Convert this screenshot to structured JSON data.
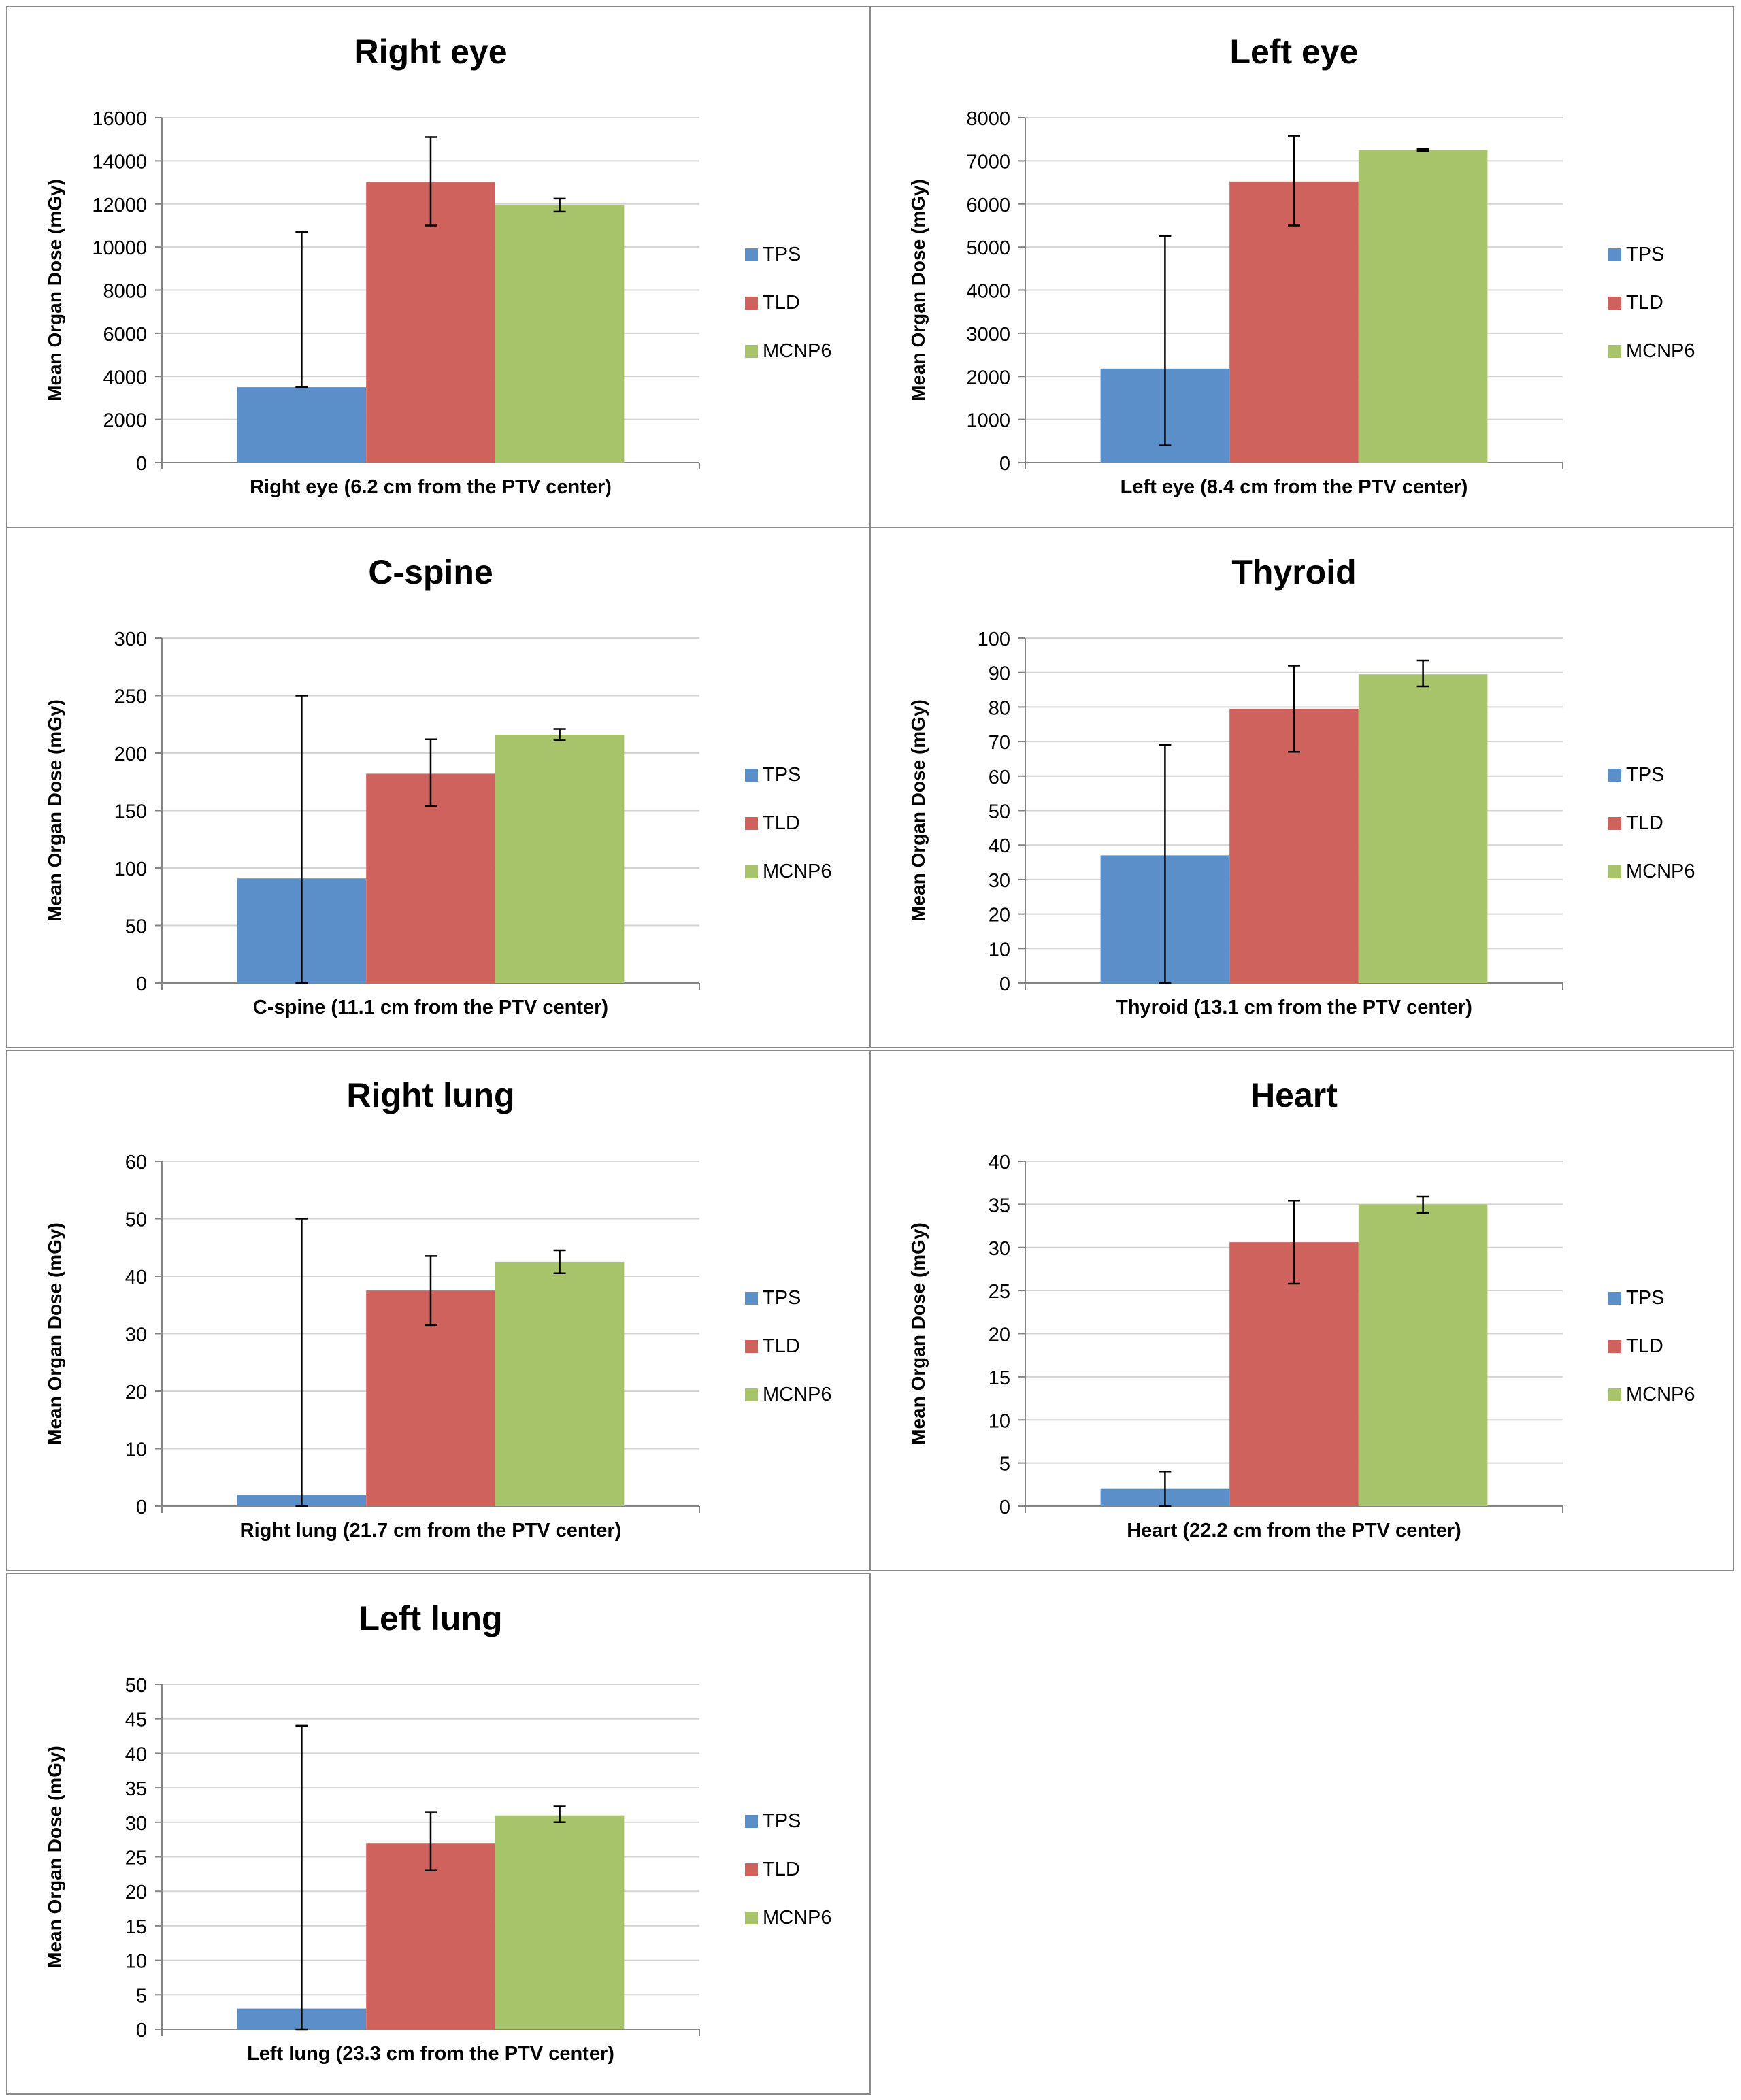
{
  "colors": {
    "TPS": "#5b8fc9",
    "TLD": "#d0625d",
    "MCNP6": "#a8c46b",
    "grid": "#d4d4d4",
    "axis": "#858585",
    "border": "#8a8a8a",
    "text": "#000000"
  },
  "legend": [
    "TPS",
    "TLD",
    "MCNP6"
  ],
  "chart_data": [
    {
      "type": "bar",
      "title": "Right eye",
      "xlabel": "Right eye (6.2 cm from the PTV center)",
      "ylabel": "Mean Organ Dose (mGy)",
      "ylim": [
        0,
        16000
      ],
      "yticks": [
        "0",
        "2000",
        "4000",
        "6000",
        "8000",
        "10000",
        "12000",
        "14000",
        "16000"
      ],
      "series": [
        {
          "name": "TPS",
          "value": 3500,
          "err_low": 3500,
          "err_high": 10700
        },
        {
          "name": "TLD",
          "value": 13000,
          "err_low": 11000,
          "err_high": 15100
        },
        {
          "name": "MCNP6",
          "value": 11950,
          "err_low": 11650,
          "err_high": 12250
        }
      ]
    },
    {
      "type": "bar",
      "title": "Left eye",
      "xlabel": "Left eye (8.4 cm from the PTV center)",
      "ylabel": "Mean Organ Dose (mGy)",
      "ylim": [
        0,
        8000
      ],
      "yticks": [
        "0",
        "1000",
        "2000",
        "3000",
        "4000",
        "5000",
        "6000",
        "7000",
        "8000"
      ],
      "series": [
        {
          "name": "TPS",
          "value": 2180,
          "err_low": 400,
          "err_high": 5250
        },
        {
          "name": "TLD",
          "value": 6520,
          "err_low": 5500,
          "err_high": 7580
        },
        {
          "name": "MCNP6",
          "value": 7250,
          "err_low": 7230,
          "err_high": 7270
        }
      ]
    },
    {
      "type": "bar",
      "title": "C-spine",
      "xlabel": "C-spine (11.1 cm from the PTV center)",
      "ylabel": "Mean Organ Dose (mGy)",
      "ylim": [
        0,
        300
      ],
      "yticks": [
        "0",
        "50",
        "100",
        "150",
        "200",
        "250",
        "300"
      ],
      "series": [
        {
          "name": "TPS",
          "value": 91,
          "err_low": 0,
          "err_high": 250
        },
        {
          "name": "TLD",
          "value": 182,
          "err_low": 154,
          "err_high": 212
        },
        {
          "name": "MCNP6",
          "value": 216,
          "err_low": 211,
          "err_high": 221
        }
      ]
    },
    {
      "type": "bar",
      "title": "Thyroid",
      "xlabel": "Thyroid (13.1 cm from the PTV center)",
      "ylabel": "Mean Organ Dose (mGy)",
      "ylim": [
        0,
        100
      ],
      "yticks": [
        "0",
        "10",
        "20",
        "30",
        "40",
        "50",
        "60",
        "70",
        "80",
        "90",
        "100"
      ],
      "series": [
        {
          "name": "TPS",
          "value": 37,
          "err_low": 0,
          "err_high": 69
        },
        {
          "name": "TLD",
          "value": 79.5,
          "err_low": 67,
          "err_high": 92
        },
        {
          "name": "MCNP6",
          "value": 89.5,
          "err_low": 86,
          "err_high": 93.5
        }
      ]
    },
    {
      "type": "bar",
      "title": "Right lung",
      "xlabel": "Right lung (21.7 cm from the PTV center)",
      "ylabel": "Mean Organ Dose (mGy)",
      "ylim": [
        0,
        60
      ],
      "yticks": [
        "0",
        "10",
        "20",
        "30",
        "40",
        "50",
        "60"
      ],
      "series": [
        {
          "name": "TPS",
          "value": 2,
          "err_low": 0,
          "err_high": 50
        },
        {
          "name": "TLD",
          "value": 37.5,
          "err_low": 31.5,
          "err_high": 43.5
        },
        {
          "name": "MCNP6",
          "value": 42.5,
          "err_low": 40.5,
          "err_high": 44.5
        }
      ]
    },
    {
      "type": "bar",
      "title": "Heart",
      "xlabel": "Heart (22.2 cm from the PTV center)",
      "ylabel": "Mean Organ Dose (mGy)",
      "ylim": [
        0,
        40
      ],
      "yticks": [
        "0",
        "5",
        "10",
        "15",
        "20",
        "25",
        "30",
        "35",
        "40"
      ],
      "series": [
        {
          "name": "TPS",
          "value": 2,
          "err_low": 0,
          "err_high": 4
        },
        {
          "name": "TLD",
          "value": 30.6,
          "err_low": 25.8,
          "err_high": 35.4
        },
        {
          "name": "MCNP6",
          "value": 35,
          "err_low": 34,
          "err_high": 35.9
        }
      ]
    },
    {
      "type": "bar",
      "title": "Left lung",
      "xlabel": "Left lung (23.3 cm from the PTV center)",
      "ylabel": "Mean Organ Dose (mGy)",
      "ylim": [
        0,
        50
      ],
      "yticks": [
        "0",
        "5",
        "10",
        "15",
        "20",
        "25",
        "30",
        "35",
        "40",
        "45",
        "50"
      ],
      "series": [
        {
          "name": "TPS",
          "value": 3,
          "err_low": 0,
          "err_high": 44
        },
        {
          "name": "TLD",
          "value": 27,
          "err_low": 23,
          "err_high": 31.5
        },
        {
          "name": "MCNP6",
          "value": 31,
          "err_low": 30,
          "err_high": 32.3
        }
      ]
    }
  ]
}
